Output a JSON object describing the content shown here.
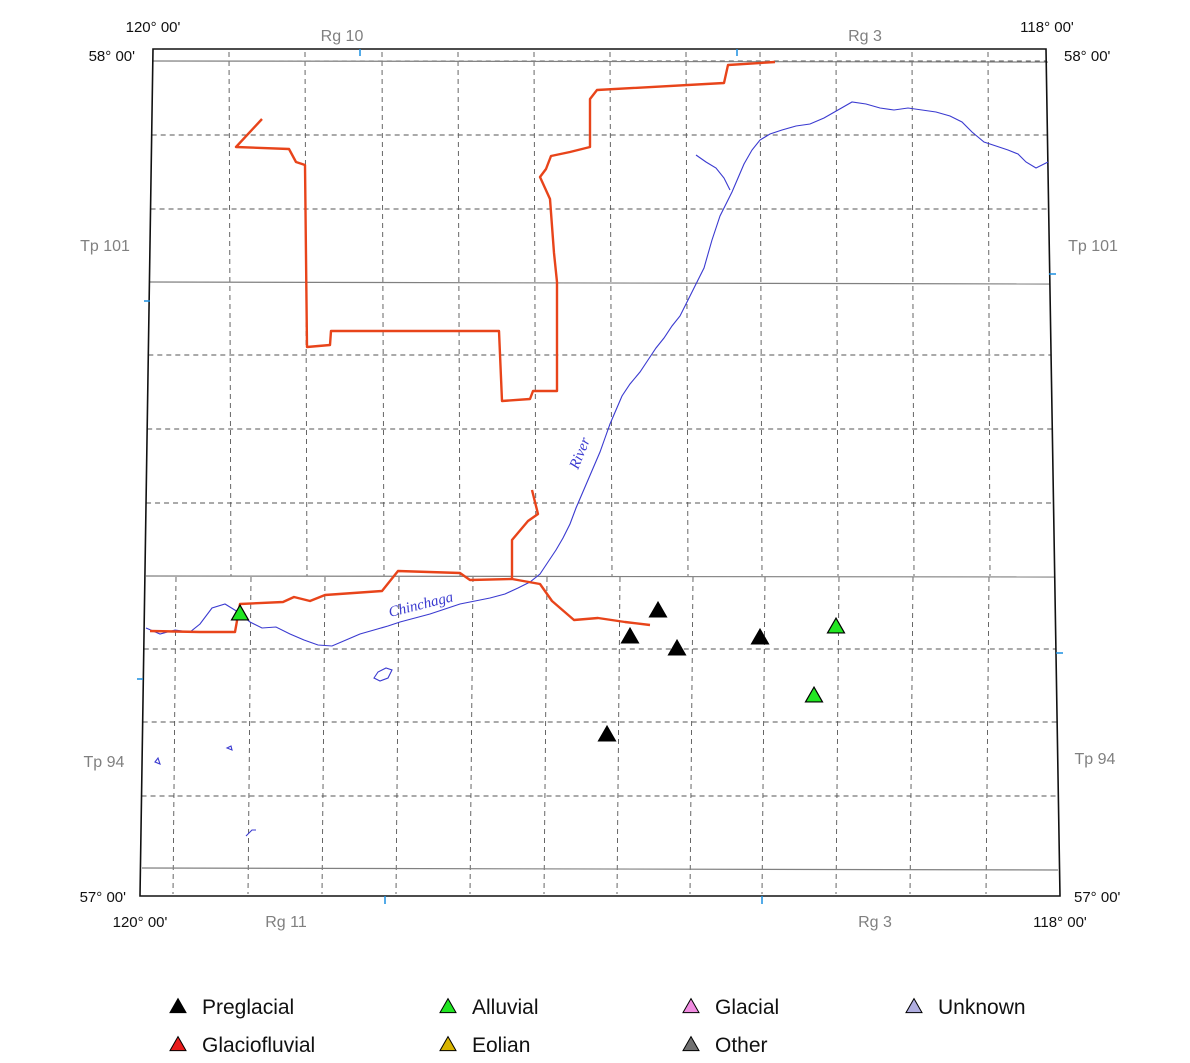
{
  "map": {
    "corners": {
      "top_left_lon": "120° 00'",
      "top_right_lon": "118° 00'",
      "bottom_left_lon": "120° 00'",
      "bottom_right_lon": "118° 00'",
      "top_left_lat": "58° 00'",
      "top_right_lat": "58° 00'",
      "bottom_left_lat": "57° 00'",
      "bottom_right_lat": "57° 00'"
    },
    "ranges": {
      "top_left": "Rg 10",
      "top_right": "Rg 3",
      "bottom_left": "Rg 11",
      "bottom_right": "Rg 3"
    },
    "townships": {
      "upper_left": "Tp 101",
      "upper_right": "Tp 101",
      "lower_left": "Tp 94",
      "lower_right": "Tp 94"
    },
    "river_labels": {
      "river": "River",
      "chinchaga": "Chinchaga"
    },
    "colors": {
      "road": "#e8441a",
      "river": "#3a3ad0",
      "grid_dashed": "#555555",
      "township_line": "#808080",
      "tick": "#1a8fe0"
    }
  },
  "sites": [
    {
      "category": "Preglacial",
      "symbol": "triangle",
      "color": "#000000"
    },
    {
      "category": "Preglacial",
      "symbol": "triangle",
      "color": "#000000"
    },
    {
      "category": "Preglacial",
      "symbol": "triangle",
      "color": "#000000"
    },
    {
      "category": "Preglacial",
      "symbol": "triangle",
      "color": "#000000"
    },
    {
      "category": "Preglacial",
      "symbol": "triangle",
      "color": "#000000"
    },
    {
      "category": "Alluvial",
      "symbol": "triangle",
      "color": "#22e622"
    },
    {
      "category": "Alluvial",
      "symbol": "triangle",
      "color": "#22e622"
    },
    {
      "category": "Alluvial",
      "symbol": "triangle",
      "color": "#22e622"
    }
  ],
  "legend": [
    {
      "label": "Preglacial",
      "color": "#000000"
    },
    {
      "label": "Alluvial",
      "color": "#22e622"
    },
    {
      "label": "Glacial",
      "color": "#f08ce0"
    },
    {
      "label": "Unknown",
      "color": "#b0aee0"
    },
    {
      "label": "Glaciofluvial",
      "color": "#e81c1c"
    },
    {
      "label": "Eolian",
      "color": "#d8b400"
    },
    {
      "label": "Other",
      "color": "#707070"
    }
  ]
}
